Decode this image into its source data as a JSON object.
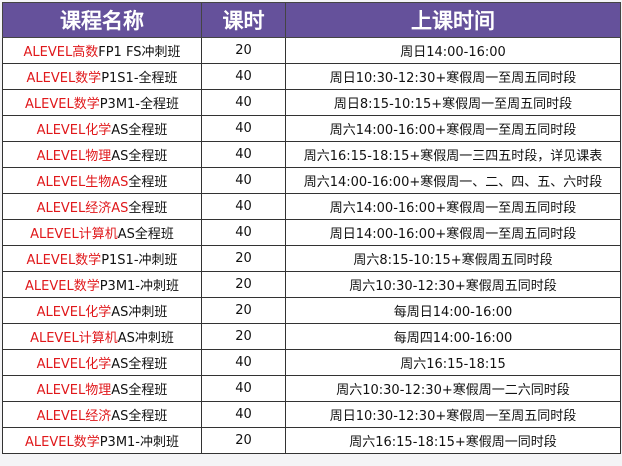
{
  "header": {
    "name": "课程名称",
    "hours": "课时",
    "time": "上课时间"
  },
  "accent_color": "#65519b",
  "highlight_color": "#e0181b",
  "rows": [
    {
      "red": "ALEVEL高数",
      "rest": "FP1 FS冲刺班",
      "hours": "20",
      "time": "周日14:00-16:00"
    },
    {
      "red": "ALEVEL数学",
      "rest": "P1S1-全程班",
      "hours": "40",
      "time": "周日10:30-12:30+寒假周一至周五同时段"
    },
    {
      "red": "ALEVEL数学",
      "rest": "P3M1-全程班",
      "hours": "40",
      "time": "周日8:15-10:15+寒假周一至周五同时段"
    },
    {
      "red": "ALEVEL化学",
      "rest": "AS全程班",
      "hours": "40",
      "time": "周六14:00-16:00+寒假周一至周五同时段"
    },
    {
      "red": "ALEVEL物理",
      "rest": "AS全程班",
      "hours": "40",
      "time": "周六16:15-18:15+寒假周一三四五时段，详见课表"
    },
    {
      "red": "ALEVEL生物AS",
      "rest": "全程班",
      "hours": "40",
      "time": "周六14:00-16:00+寒假周一、二、四、五、六时段"
    },
    {
      "red": "ALEVEL经济AS",
      "rest": "全程班",
      "hours": "40",
      "time": "周六14:00-16:00+寒假周一至周五同时段"
    },
    {
      "red": "ALEVEL计算机",
      "rest": "AS全程班",
      "hours": "40",
      "time": "周日14:00-16:00+寒假周一至周五同时段"
    },
    {
      "red": "ALEVEL数学",
      "rest": "P1S1-冲刺班",
      "hours": "20",
      "time": "周六8:15-10:15+寒假周五同时段"
    },
    {
      "red": "ALEVEL数学",
      "rest": "P3M1-冲刺班",
      "hours": "20",
      "time": "周六10:30-12:30+寒假周五同时段"
    },
    {
      "red": "ALEVEL化学",
      "rest": "AS冲刺班",
      "hours": "20",
      "time": "每周日14:00-16:00"
    },
    {
      "red": "ALEVEL计算机",
      "rest": "AS冲刺班",
      "hours": "20",
      "time": "每周四14:00-16:00"
    },
    {
      "red": "ALEVEL化学",
      "rest": "AS全程班",
      "hours": "40",
      "time": "周六16:15-18:15"
    },
    {
      "red": "ALEVEL物理",
      "rest": "AS全程班",
      "hours": "40",
      "time": "周六10:30-12:30+寒假周一二六同时段"
    },
    {
      "red": "ALEVEL经济",
      "rest": "AS全程班",
      "hours": "40",
      "time": "周日10:30-12:30+寒假周一至周五同时段"
    },
    {
      "red": "ALEVEL数学",
      "rest": "P3M1-冲刺班",
      "hours": "20",
      "time": "周六16:15-18:15+寒假周一同时段"
    }
  ]
}
